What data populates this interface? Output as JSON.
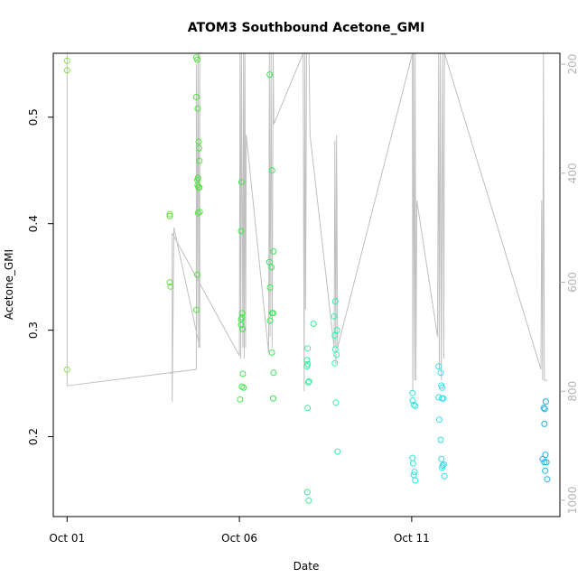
{
  "chart_data": {
    "type": "scatter",
    "title": "ATOM3 Southbound Acetone_GMI",
    "xlabel": "Date",
    "ylabel": "Acetone_GMI",
    "x_ticks": [
      {
        "label": "Oct 01",
        "day": 1
      },
      {
        "label": "Oct 06",
        "day": 6
      },
      {
        "label": "Oct 11",
        "day": 11
      }
    ],
    "xlim_days": [
      0.6,
      15.3
    ],
    "ylim": [
      0.125,
      0.56
    ],
    "y_ticks": [
      "0.2",
      "0.3",
      "0.4",
      "0.5"
    ],
    "y2_ticks": [
      "200",
      "400",
      "600",
      "800",
      "1000"
    ],
    "y2lim": [
      1030,
      180
    ],
    "y2_reversed": true,
    "point_color_scale": "green to blue over time",
    "points": [
      {
        "day": 1.0,
        "value": 0.553,
        "color": "#8ee04a"
      },
      {
        "day": 1.0,
        "value": 0.544,
        "color": "#8ee04a"
      },
      {
        "day": 1.0,
        "value": 0.263,
        "color": "#8ee04a"
      },
      {
        "day": 3.98,
        "value": 0.409,
        "color": "#66e23c"
      },
      {
        "day": 3.98,
        "value": 0.407,
        "color": "#66e23c"
      },
      {
        "day": 3.98,
        "value": 0.345,
        "color": "#66e23c"
      },
      {
        "day": 4.0,
        "value": 0.341,
        "color": "#66e23c"
      },
      {
        "day": 4.75,
        "value": 0.556,
        "color": "#4fe63a"
      },
      {
        "day": 4.78,
        "value": 0.554,
        "color": "#4fe63a"
      },
      {
        "day": 4.75,
        "value": 0.519,
        "color": "#4fe63a"
      },
      {
        "day": 4.79,
        "value": 0.508,
        "color": "#4fe63a"
      },
      {
        "day": 4.82,
        "value": 0.477,
        "color": "#4fe63a"
      },
      {
        "day": 4.83,
        "value": 0.471,
        "color": "#4fe63a"
      },
      {
        "day": 4.84,
        "value": 0.459,
        "color": "#4fe63a"
      },
      {
        "day": 4.78,
        "value": 0.441,
        "color": "#4fe63a"
      },
      {
        "day": 4.8,
        "value": 0.443,
        "color": "#4fe63a"
      },
      {
        "day": 4.79,
        "value": 0.436,
        "color": "#4fe63a"
      },
      {
        "day": 4.82,
        "value": 0.434,
        "color": "#4fe63a"
      },
      {
        "day": 4.84,
        "value": 0.434,
        "color": "#4fe63a"
      },
      {
        "day": 4.8,
        "value": 0.41,
        "color": "#4fe63a"
      },
      {
        "day": 4.85,
        "value": 0.411,
        "color": "#4fe63a"
      },
      {
        "day": 4.78,
        "value": 0.352,
        "color": "#4fe63a"
      },
      {
        "day": 4.75,
        "value": 0.319,
        "color": "#4fe63a"
      },
      {
        "day": 6.06,
        "value": 0.439,
        "color": "#3ee84a"
      },
      {
        "day": 6.05,
        "value": 0.393,
        "color": "#3ee84a"
      },
      {
        "day": 6.08,
        "value": 0.316,
        "color": "#3ee84a"
      },
      {
        "day": 6.07,
        "value": 0.312,
        "color": "#3ee84a"
      },
      {
        "day": 6.05,
        "value": 0.31,
        "color": "#3ee84a"
      },
      {
        "day": 6.05,
        "value": 0.305,
        "color": "#3ee84a"
      },
      {
        "day": 6.09,
        "value": 0.301,
        "color": "#3ee84a"
      },
      {
        "day": 6.1,
        "value": 0.259,
        "color": "#3ee84a"
      },
      {
        "day": 6.07,
        "value": 0.247,
        "color": "#3ee84a"
      },
      {
        "day": 6.12,
        "value": 0.246,
        "color": "#3ee84a"
      },
      {
        "day": 6.02,
        "value": 0.235,
        "color": "#3ee84a"
      },
      {
        "day": 6.88,
        "value": 0.54,
        "color": "#36ea56"
      },
      {
        "day": 6.95,
        "value": 0.45,
        "color": "#36ea56"
      },
      {
        "day": 6.99,
        "value": 0.374,
        "color": "#36ea56"
      },
      {
        "day": 6.87,
        "value": 0.364,
        "color": "#36ea56"
      },
      {
        "day": 6.93,
        "value": 0.359,
        "color": "#36ea56"
      },
      {
        "day": 6.89,
        "value": 0.34,
        "color": "#36ea56"
      },
      {
        "day": 6.95,
        "value": 0.316,
        "color": "#36ea56"
      },
      {
        "day": 6.98,
        "value": 0.316,
        "color": "#36ea56"
      },
      {
        "day": 6.89,
        "value": 0.309,
        "color": "#36ea56"
      },
      {
        "day": 6.94,
        "value": 0.279,
        "color": "#36ea56"
      },
      {
        "day": 6.99,
        "value": 0.26,
        "color": "#36ea56"
      },
      {
        "day": 6.98,
        "value": 0.236,
        "color": "#36ea56"
      },
      {
        "day": 7.98,
        "value": 0.283,
        "color": "#35ee9c"
      },
      {
        "day": 7.96,
        "value": 0.272,
        "color": "#35ee9c"
      },
      {
        "day": 7.98,
        "value": 0.268,
        "color": "#35ee9c"
      },
      {
        "day": 7.96,
        "value": 0.266,
        "color": "#35ee9c"
      },
      {
        "day": 8.02,
        "value": 0.252,
        "color": "#35ee9c"
      },
      {
        "day": 8.0,
        "value": 0.251,
        "color": "#35ee9c"
      },
      {
        "day": 8.15,
        "value": 0.306,
        "color": "#35ee9c"
      },
      {
        "day": 7.98,
        "value": 0.227,
        "color": "#35ee9c"
      },
      {
        "day": 7.97,
        "value": 0.148,
        "color": "#35ee9c"
      },
      {
        "day": 8.01,
        "value": 0.14,
        "color": "#35ee9c"
      },
      {
        "day": 8.78,
        "value": 0.327,
        "color": "#33eeb4"
      },
      {
        "day": 8.75,
        "value": 0.313,
        "color": "#33eeb4"
      },
      {
        "day": 8.83,
        "value": 0.3,
        "color": "#33eeb4"
      },
      {
        "day": 8.77,
        "value": 0.295,
        "color": "#33eeb4"
      },
      {
        "day": 8.78,
        "value": 0.282,
        "color": "#33eeb4"
      },
      {
        "day": 8.82,
        "value": 0.277,
        "color": "#33eeb4"
      },
      {
        "day": 8.77,
        "value": 0.269,
        "color": "#33eeb4"
      },
      {
        "day": 8.8,
        "value": 0.232,
        "color": "#33eeb4"
      },
      {
        "day": 8.85,
        "value": 0.186,
        "color": "#33eeb4"
      },
      {
        "day": 11.02,
        "value": 0.241,
        "color": "#33e6e0"
      },
      {
        "day": 11.03,
        "value": 0.234,
        "color": "#33e6e0"
      },
      {
        "day": 11.06,
        "value": 0.23,
        "color": "#33e6e0"
      },
      {
        "day": 11.1,
        "value": 0.229,
        "color": "#33e6e0"
      },
      {
        "day": 11.02,
        "value": 0.18,
        "color": "#33e6e0"
      },
      {
        "day": 11.04,
        "value": 0.175,
        "color": "#33e6e0"
      },
      {
        "day": 11.08,
        "value": 0.167,
        "color": "#33e6e0"
      },
      {
        "day": 11.06,
        "value": 0.164,
        "color": "#33e6e0"
      },
      {
        "day": 11.1,
        "value": 0.159,
        "color": "#33e6e0"
      },
      {
        "day": 11.78,
        "value": 0.266,
        "color": "#33e0ec"
      },
      {
        "day": 11.84,
        "value": 0.26,
        "color": "#33e0ec"
      },
      {
        "day": 11.86,
        "value": 0.248,
        "color": "#33e0ec"
      },
      {
        "day": 11.88,
        "value": 0.246,
        "color": "#33e0ec"
      },
      {
        "day": 11.78,
        "value": 0.237,
        "color": "#33e0ec"
      },
      {
        "day": 11.88,
        "value": 0.236,
        "color": "#33e0ec"
      },
      {
        "day": 11.92,
        "value": 0.236,
        "color": "#33e0ec"
      },
      {
        "day": 11.8,
        "value": 0.216,
        "color": "#33e0ec"
      },
      {
        "day": 11.84,
        "value": 0.197,
        "color": "#33e0ec"
      },
      {
        "day": 11.86,
        "value": 0.179,
        "color": "#33e0ec"
      },
      {
        "day": 11.9,
        "value": 0.173,
        "color": "#33e0ec"
      },
      {
        "day": 11.93,
        "value": 0.174,
        "color": "#33e0ec"
      },
      {
        "day": 11.88,
        "value": 0.171,
        "color": "#33e0ec"
      },
      {
        "day": 11.95,
        "value": 0.163,
        "color": "#33e0ec"
      },
      {
        "day": 14.89,
        "value": 0.233,
        "color": "#1fb0e8"
      },
      {
        "day": 14.83,
        "value": 0.227,
        "color": "#1fb0e8"
      },
      {
        "day": 14.86,
        "value": 0.226,
        "color": "#1fb0e8"
      },
      {
        "day": 14.85,
        "value": 0.212,
        "color": "#1fb0e8"
      },
      {
        "day": 14.88,
        "value": 0.183,
        "color": "#1fb0e8"
      },
      {
        "day": 14.8,
        "value": 0.179,
        "color": "#1fb0e8"
      },
      {
        "day": 14.85,
        "value": 0.176,
        "color": "#1fb0e8"
      },
      {
        "day": 14.91,
        "value": 0.176,
        "color": "#1fb0e8"
      },
      {
        "day": 14.87,
        "value": 0.168,
        "color": "#1fb0e8"
      },
      {
        "day": 14.93,
        "value": 0.16,
        "color": "#1fb0e8"
      }
    ],
    "pressure_line": {
      "color": "#c0c0c0",
      "points": [
        [
          1.0,
          180
        ],
        [
          1.0,
          790
        ],
        [
          4.75,
          760
        ],
        [
          4.75,
          200
        ],
        [
          4.76,
          700
        ],
        [
          4.8,
          180
        ],
        [
          4.82,
          720
        ],
        [
          4.85,
          180
        ],
        [
          4.85,
          720
        ],
        [
          4.1,
          500
        ],
        [
          4.05,
          820
        ],
        [
          4.05,
          510
        ],
        [
          6.0,
          735
        ],
        [
          6.02,
          180
        ],
        [
          6.04,
          740
        ],
        [
          6.06,
          180
        ],
        [
          6.1,
          720
        ],
        [
          6.12,
          180
        ],
        [
          6.14,
          740
        ],
        [
          6.16,
          180
        ],
        [
          6.18,
          720
        ],
        [
          6.2,
          330
        ],
        [
          6.85,
          730
        ],
        [
          6.87,
          180
        ],
        [
          6.89,
          700
        ],
        [
          6.92,
          180
        ],
        [
          6.95,
          720
        ],
        [
          6.98,
          180
        ],
        [
          7.0,
          310
        ],
        [
          7.85,
          180
        ],
        [
          7.88,
          800
        ],
        [
          7.9,
          180
        ],
        [
          7.92,
          650
        ],
        [
          7.95,
          180
        ],
        [
          8.02,
          180
        ],
        [
          8.05,
          330
        ],
        [
          8.75,
          720
        ],
        [
          8.77,
          340
        ],
        [
          8.8,
          750
        ],
        [
          8.82,
          330
        ],
        [
          8.85,
          720
        ],
        [
          11.02,
          180
        ],
        [
          11.03,
          800
        ],
        [
          11.05,
          180
        ],
        [
          11.08,
          780
        ],
        [
          11.1,
          180
        ],
        [
          11.12,
          780
        ],
        [
          11.15,
          450
        ],
        [
          11.75,
          700
        ],
        [
          11.78,
          180
        ],
        [
          11.8,
          760
        ],
        [
          11.83,
          180
        ],
        [
          11.86,
          780
        ],
        [
          11.9,
          180
        ],
        [
          11.93,
          740
        ],
        [
          11.95,
          180
        ],
        [
          14.75,
          760
        ],
        [
          14.77,
          450
        ],
        [
          14.8,
          780
        ],
        [
          14.82,
          180
        ],
        [
          14.85,
          780
        ],
        [
          14.95,
          780
        ]
      ]
    }
  }
}
